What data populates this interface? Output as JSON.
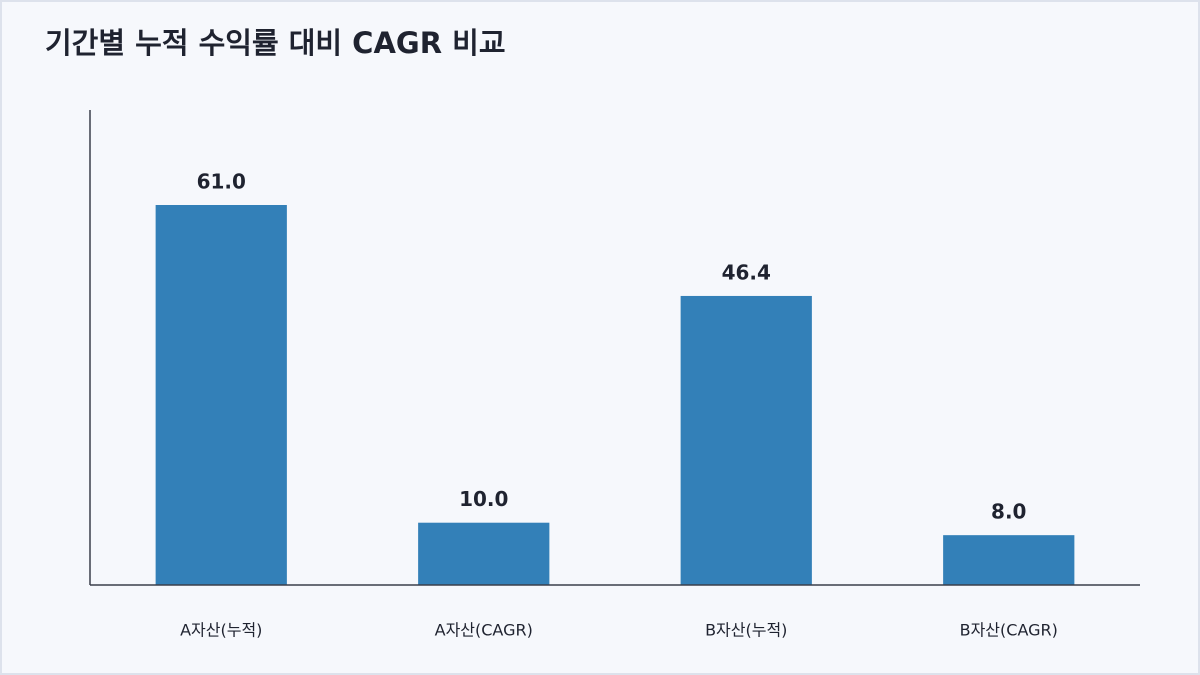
{
  "chart_data": {
    "type": "bar",
    "title": "기간별 누적 수익률 대비 CAGR 비교",
    "categories": [
      "A자산(누적)",
      "A자산(CAGR)",
      "B자산(누적)",
      "B자산(CAGR)"
    ],
    "values": [
      61.0,
      10.0,
      46.4,
      8.0
    ],
    "value_labels": [
      "61.0",
      "10.0",
      "46.4",
      "8.0"
    ],
    "color": "#3380b8",
    "ylim": [
      0,
      76.25
    ]
  }
}
